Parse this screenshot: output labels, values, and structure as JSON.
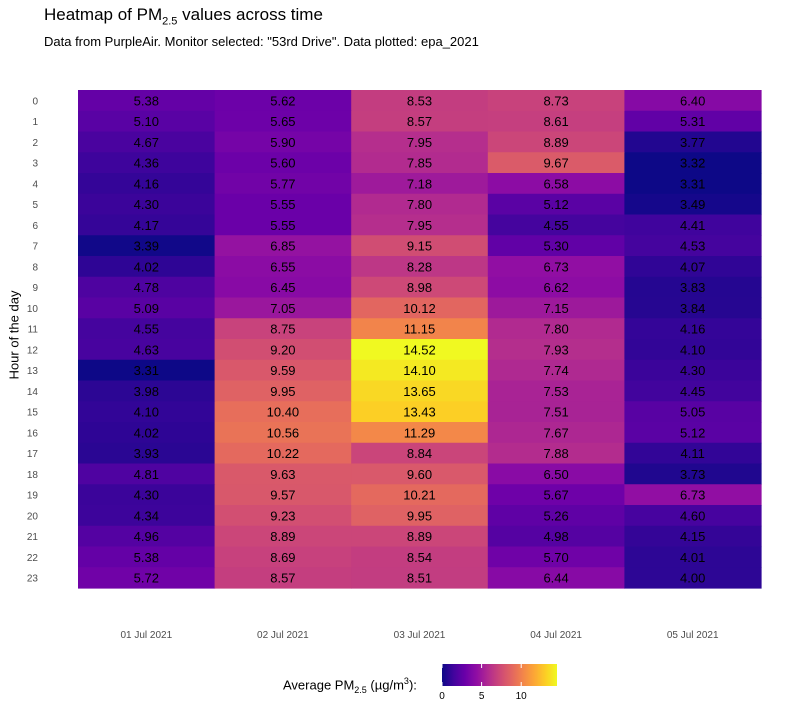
{
  "chart_data": {
    "type": "heatmap",
    "title_prefix": "Heatmap of PM",
    "title_sub": "2.5",
    "title_suffix": " values across time",
    "subtitle": "Data from PurpleAir. Monitor selected: \"53rd Drive\". Data plotted: epa_2021",
    "ylabel": "Hour of the day",
    "xlabel": "",
    "x": [
      "01 Jul 2021",
      "02 Jul 2021",
      "03 Jul 2021",
      "04 Jul 2021",
      "05 Jul 2021"
    ],
    "y": [
      "0",
      "1",
      "2",
      "3",
      "4",
      "5",
      "6",
      "7",
      "8",
      "9",
      "10",
      "11",
      "12",
      "13",
      "14",
      "15",
      "16",
      "17",
      "18",
      "19",
      "20",
      "21",
      "22",
      "23"
    ],
    "values": [
      [
        5.38,
        5.62,
        8.53,
        8.73,
        6.4
      ],
      [
        5.1,
        5.65,
        8.57,
        8.61,
        5.31
      ],
      [
        4.67,
        5.9,
        7.95,
        8.89,
        3.77
      ],
      [
        4.36,
        5.6,
        7.85,
        9.67,
        3.32
      ],
      [
        4.16,
        5.77,
        7.18,
        6.58,
        3.31
      ],
      [
        4.3,
        5.55,
        7.8,
        5.12,
        3.49
      ],
      [
        4.17,
        5.55,
        7.95,
        4.55,
        4.41
      ],
      [
        3.39,
        6.85,
        9.15,
        5.3,
        4.53
      ],
      [
        4.02,
        6.55,
        8.28,
        6.73,
        4.07
      ],
      [
        4.78,
        6.45,
        8.98,
        6.62,
        3.83
      ],
      [
        5.09,
        7.05,
        10.12,
        7.15,
        3.84
      ],
      [
        4.55,
        8.75,
        11.15,
        7.8,
        4.16
      ],
      [
        4.63,
        9.2,
        14.52,
        7.93,
        4.1
      ],
      [
        3.31,
        9.59,
        14.1,
        7.74,
        4.3
      ],
      [
        3.98,
        9.95,
        13.65,
        7.53,
        4.45
      ],
      [
        4.1,
        10.4,
        13.43,
        7.51,
        5.05
      ],
      [
        4.02,
        10.56,
        11.29,
        7.67,
        5.12
      ],
      [
        3.93,
        10.22,
        8.84,
        7.88,
        4.11
      ],
      [
        4.81,
        9.63,
        9.6,
        6.5,
        3.73
      ],
      [
        4.3,
        9.57,
        10.21,
        5.67,
        6.73
      ],
      [
        4.34,
        9.23,
        9.95,
        5.26,
        4.6
      ],
      [
        4.96,
        8.89,
        8.89,
        4.98,
        4.15
      ],
      [
        5.38,
        8.69,
        8.54,
        5.7,
        4.01
      ],
      [
        5.72,
        8.57,
        8.51,
        6.44,
        4.0
      ]
    ],
    "value_labels": [
      [
        "5.38",
        "5.62",
        "8.53",
        "8.73",
        "6.40"
      ],
      [
        "5.10",
        "5.65",
        "8.57",
        "8.61",
        "5.31"
      ],
      [
        "4.67",
        "5.90",
        "7.95",
        "8.89",
        "3.77"
      ],
      [
        "4.36",
        "5.60",
        "7.85",
        "9.67",
        "3.32"
      ],
      [
        "4.16",
        "5.77",
        "7.18",
        "6.58",
        "3.31"
      ],
      [
        "4.30",
        "5.55",
        "7.80",
        "5.12",
        "3.49"
      ],
      [
        "4.17",
        "5.55",
        "7.95",
        "4.55",
        "4.41"
      ],
      [
        "3.39",
        "6.85",
        "9.15",
        "5.30",
        "4.53"
      ],
      [
        "4.02",
        "6.55",
        "8.28",
        "6.73",
        "4.07"
      ],
      [
        "4.78",
        "6.45",
        "8.98",
        "6.62",
        "3.83"
      ],
      [
        "5.09",
        "7.05",
        "10.12",
        "7.15",
        "3.84"
      ],
      [
        "4.55",
        "8.75",
        "11.15",
        "7.80",
        "4.16"
      ],
      [
        "4.63",
        "9.20",
        "14.52",
        "7.93",
        "4.10"
      ],
      [
        "3.31",
        "9.59",
        "14.10",
        "7.74",
        "4.30"
      ],
      [
        "3.98",
        "9.95",
        "13.65",
        "7.53",
        "4.45"
      ],
      [
        "4.10",
        "10.40",
        "13.43",
        "7.51",
        "5.05"
      ],
      [
        "4.02",
        "10.56",
        "11.29",
        "7.67",
        "5.12"
      ],
      [
        "3.93",
        "10.22",
        "8.84",
        "7.88",
        "4.11"
      ],
      [
        "4.81",
        "9.63",
        "9.60",
        "6.50",
        "3.73"
      ],
      [
        "4.30",
        "9.57",
        "10.21",
        "5.67",
        "6.73"
      ],
      [
        "4.34",
        "9.23",
        "9.95",
        "5.26",
        "4.60"
      ],
      [
        "4.96",
        "8.89",
        "8.89",
        "4.98",
        "4.15"
      ],
      [
        "5.38",
        "8.69",
        "8.54",
        "5.70",
        "4.01"
      ],
      [
        "5.72",
        "8.57",
        "8.51",
        "6.44",
        "4.00"
      ]
    ],
    "color_scale": "plasma",
    "color_range": [
      3.31,
      14.52
    ],
    "legend": {
      "title_prefix": "Average PM",
      "title_sub": "2.5",
      "title_mid": " (µg/m",
      "title_sup": "3",
      "title_suffix": "):",
      "ticks": [
        0,
        5,
        10
      ],
      "tick_labels": [
        "0",
        "5",
        "10"
      ],
      "placement": "bottom"
    },
    "grid": false
  }
}
